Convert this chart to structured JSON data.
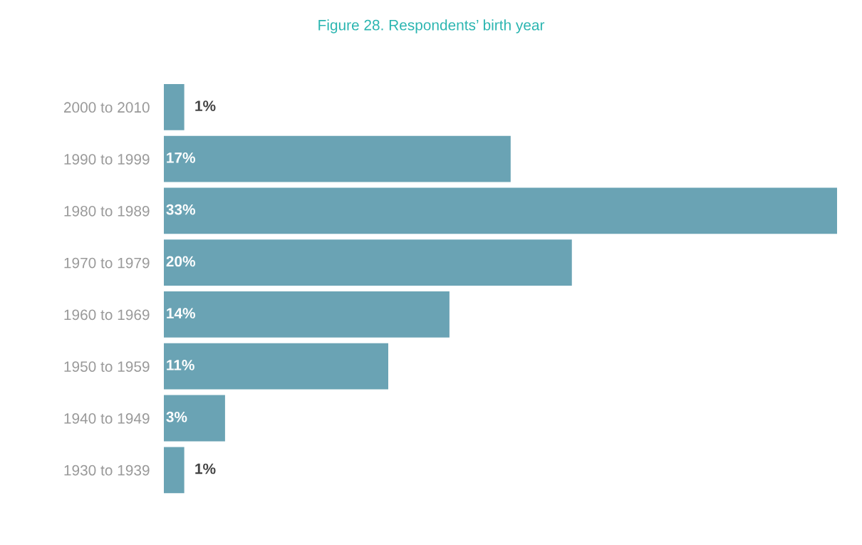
{
  "chart_data": {
    "type": "bar",
    "orientation": "horizontal",
    "title": "Figure 28. Respondents’ birth year",
    "categories": [
      "2000 to 2010",
      "1990 to 1999",
      "1980 to 1989",
      "1970 to 1979",
      "1960 to 1969",
      "1950 to 1959",
      "1940 to 1949",
      "1930 to 1939"
    ],
    "values": [
      1,
      17,
      33,
      20,
      14,
      11,
      3,
      1
    ],
    "value_labels": [
      "1%",
      "17%",
      "33%",
      "20%",
      "14%",
      "11%",
      "3%",
      "1%"
    ],
    "color": "#6aa3b4",
    "tick_labels": "y",
    "grid": false,
    "legend": false
  }
}
